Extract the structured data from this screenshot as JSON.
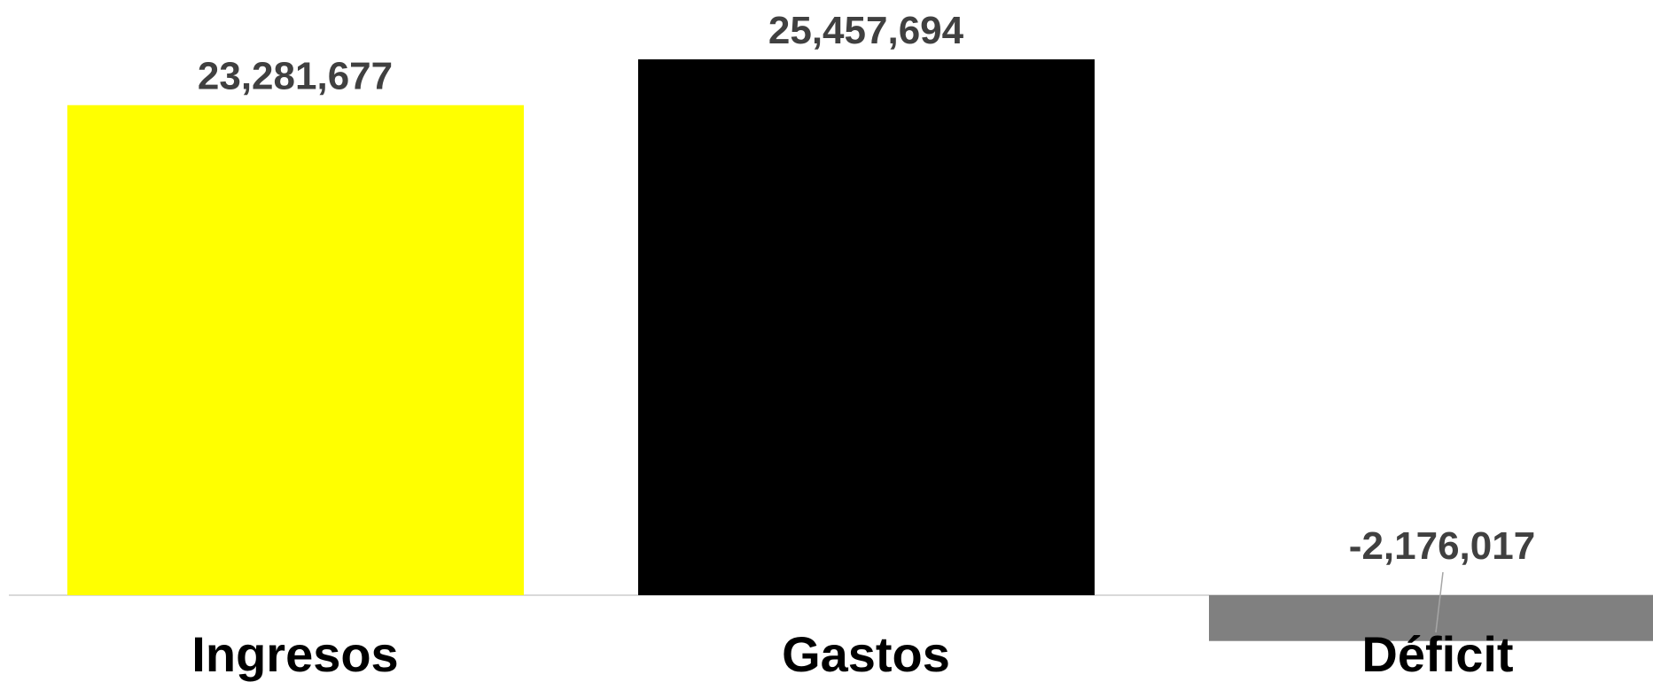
{
  "chart_data": {
    "type": "bar",
    "categories": [
      "Ingresos",
      "Gastos",
      "Déficit"
    ],
    "values": [
      23281677,
      25457694,
      -2176017
    ],
    "data_labels": [
      "23,281,677",
      "25,457,694",
      "-2,176,017"
    ],
    "colors": [
      "#ffff00",
      "#000000",
      "#808080"
    ],
    "title": "",
    "xlabel": "",
    "ylabel": "",
    "grid": false,
    "legend": "none"
  }
}
